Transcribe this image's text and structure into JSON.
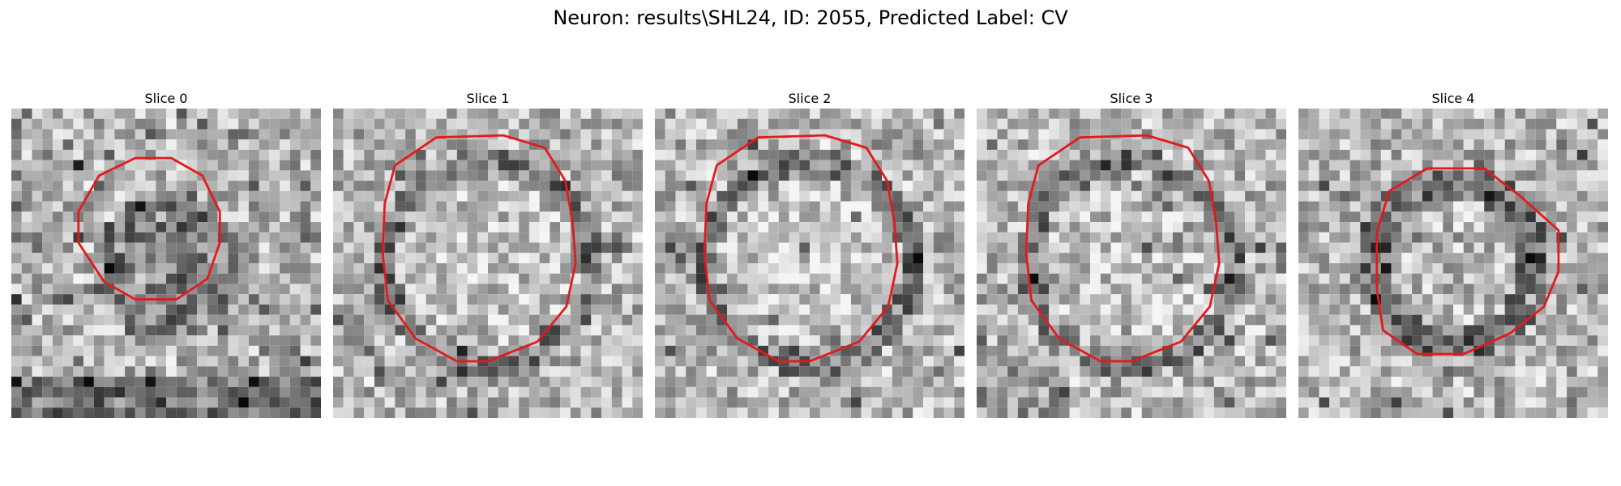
{
  "figure": {
    "title": "Neuron: results\\SHL24, ID: 2055, Predicted Label: CV"
  },
  "contour_color": "#e31a1c",
  "panels": [
    {
      "title": "Slice 0",
      "seed": 11,
      "contour": "small"
    },
    {
      "title": "Slice 1",
      "seed": 23,
      "contour": "large"
    },
    {
      "title": "Slice 2",
      "seed": 37,
      "contour": "large"
    },
    {
      "title": "Slice 3",
      "seed": 41,
      "contour": "large"
    },
    {
      "title": "Slice 4",
      "seed": 53,
      "contour": "medium"
    }
  ]
}
